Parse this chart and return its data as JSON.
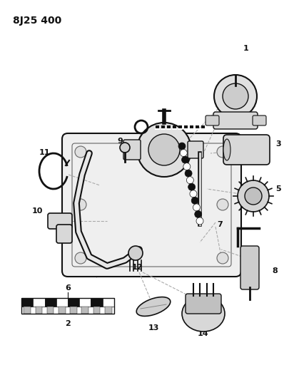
{
  "title": "8J25 400",
  "bg_color": "#ffffff",
  "title_fontsize": 10,
  "fig_width": 4.12,
  "fig_height": 5.33,
  "dpi": 100
}
